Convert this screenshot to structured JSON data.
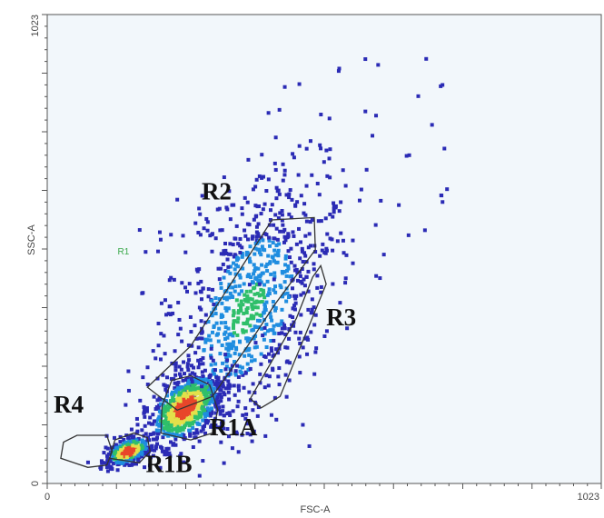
{
  "chart_data": {
    "type": "scatter",
    "subtype": "flow-cytometry density dot plot",
    "xlabel": "FSC-A",
    "ylabel": "SSC-A",
    "xlim": [
      0,
      1023
    ],
    "ylim": [
      0,
      1023
    ],
    "x_tick_labels": [
      "0",
      "1023"
    ],
    "y_tick_labels": [
      "0",
      "1023"
    ],
    "grid": false,
    "colors": {
      "background": "#f2f7fb",
      "low_density": "#2b2bb5",
      "mid_low": "#1f8de0",
      "mid": "#2fbf6a",
      "mid_high": "#e3e04a",
      "high_density": "#e8462a",
      "gate_outline": "#333333",
      "r1_label": "#3aa84a"
    },
    "gates": [
      {
        "name": "R1",
        "polygon": [
          [
            145,
            430
          ],
          [
            145,
            870
          ],
          [
            870,
            870
          ],
          [
            870,
            430
          ]
        ]
      },
      {
        "name": "R2",
        "polygon": [
          [
            185,
            210
          ],
          [
            265,
            300
          ],
          [
            325,
            410
          ],
          [
            415,
            575
          ],
          [
            493,
            580
          ],
          [
            495,
            510
          ],
          [
            420,
            390
          ],
          [
            370,
            300
          ],
          [
            305,
            190
          ],
          [
            240,
            160
          ]
        ]
      },
      {
        "name": "R3",
        "polygon": [
          [
            375,
            185
          ],
          [
            395,
            165
          ],
          [
            430,
            190
          ],
          [
            515,
            435
          ],
          [
            505,
            475
          ],
          [
            490,
            450
          ],
          [
            460,
            360
          ]
        ]
      },
      {
        "name": "R1A",
        "polygon": [
          [
            210,
            110
          ],
          [
            265,
            95
          ],
          [
            305,
            110
          ],
          [
            315,
            160
          ],
          [
            300,
            215
          ],
          [
            265,
            235
          ],
          [
            230,
            225
          ],
          [
            212,
            170
          ]
        ]
      },
      {
        "name": "R1B",
        "polygon": [
          [
            115,
            55
          ],
          [
            170,
            45
          ],
          [
            190,
            70
          ],
          [
            185,
            100
          ],
          [
            160,
            110
          ],
          [
            125,
            95
          ]
        ]
      },
      {
        "name": "R4",
        "polygon": [
          [
            25,
            55
          ],
          [
            30,
            90
          ],
          [
            55,
            105
          ],
          [
            110,
            105
          ],
          [
            120,
            70
          ],
          [
            110,
            40
          ],
          [
            75,
            35
          ]
        ]
      }
    ],
    "clusters": [
      {
        "name": "main-diagonal",
        "center": [
          370,
          380
        ],
        "sd_x": 70,
        "sd_y": 150,
        "count": 900,
        "peak_density": 0.45
      },
      {
        "name": "r1a-core",
        "center": [
          255,
          165
        ],
        "sd_x": 30,
        "sd_y": 40,
        "count": 700,
        "peak_density": 0.95
      },
      {
        "name": "r1b-core",
        "center": [
          150,
          70
        ],
        "sd_x": 18,
        "sd_y": 16,
        "count": 350,
        "peak_density": 1.0
      },
      {
        "name": "scattered-outliers",
        "x_range": [
          180,
          740
        ],
        "y_range": [
          180,
          950
        ],
        "count": 120,
        "peak_density": 0.05
      }
    ]
  },
  "gate_labels": {
    "R1": "R1",
    "R2": "R2",
    "R3": "R3",
    "R1A": "R1A",
    "R1B": "R1B",
    "R4": "R4"
  }
}
